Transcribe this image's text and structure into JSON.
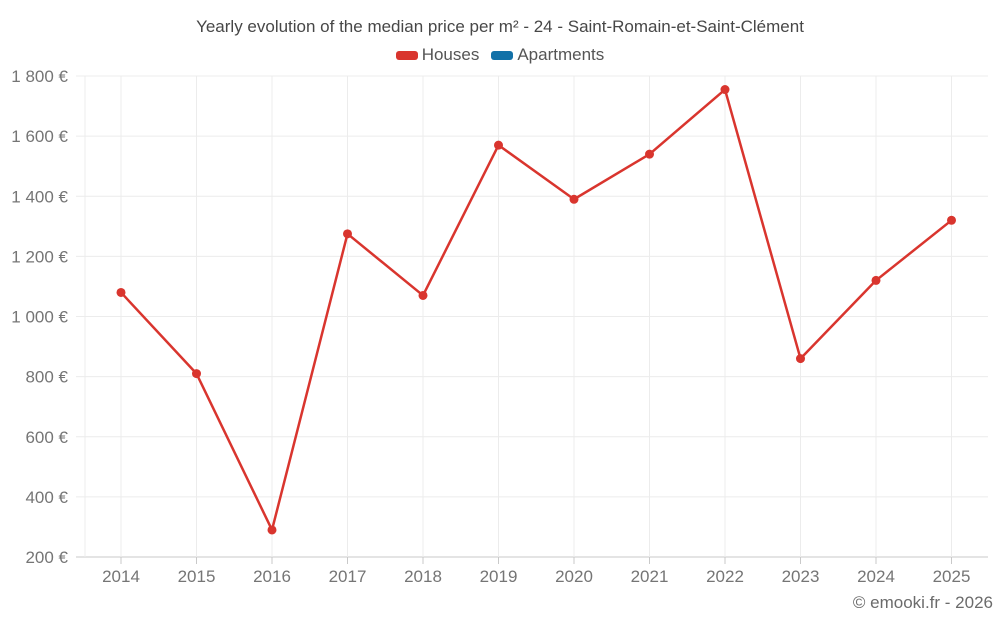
{
  "watermark": "© emooki.fr - 2026",
  "colors": {
    "houses": "#d9352e",
    "apartments": "#1271a8",
    "grid": "#ececec",
    "axis": "#c9c9c9",
    "tick_label": "#757575",
    "title_text": "#474747",
    "legend_text": "#555555"
  },
  "chart_data": {
    "type": "line",
    "title": "Yearly evolution of the median price per m² - 24 - Saint-Romain-et-Saint-Clément",
    "x": [
      2014,
      2015,
      2016,
      2017,
      2018,
      2019,
      2020,
      2021,
      2022,
      2023,
      2024,
      2025
    ],
    "series": [
      {
        "name": "Houses",
        "color": "#d9352e",
        "values": [
          1080,
          810,
          290,
          1275,
          1070,
          1570,
          1390,
          1540,
          1755,
          860,
          1120,
          1320
        ]
      },
      {
        "name": "Apartments",
        "color": "#1271a8",
        "values": []
      }
    ],
    "ylim": [
      200,
      1800
    ],
    "ytick_step": 200,
    "ytick_format": "fr-euro",
    "xlabel": "",
    "ylabel": "",
    "grid": true,
    "legend_position": "top"
  }
}
